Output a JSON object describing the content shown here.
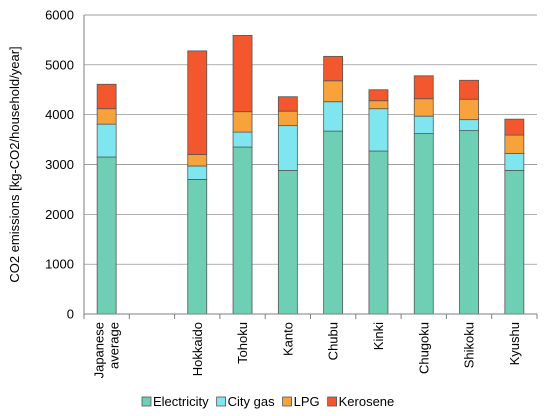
{
  "chart_data": {
    "type": "bar",
    "stacked": true,
    "categories": [
      "Japanese average",
      "",
      "Hokkaido",
      "Tohoku",
      "Kanto",
      "Chubu",
      "Kinki",
      "Chugoku",
      "Shikoku",
      "Kyushu"
    ],
    "category_lines": [
      [
        "Japanese",
        "average"
      ],
      [],
      [
        "Hokkaido"
      ],
      [
        "Tohoku"
      ],
      [
        "Kanto"
      ],
      [
        "Chubu"
      ],
      [
        "Kinki"
      ],
      [
        "Chugoku"
      ],
      [
        "Shikoku"
      ],
      [
        "Kyushu"
      ]
    ],
    "series": [
      {
        "name": "Electricity",
        "color": "#6ecfb4",
        "values": [
          3150,
          null,
          2700,
          3350,
          2880,
          3670,
          3270,
          3620,
          3680,
          2880
        ]
      },
      {
        "name": "City gas",
        "color": "#7fe6ef",
        "values": [
          660,
          null,
          270,
          300,
          900,
          590,
          850,
          350,
          220,
          340
        ]
      },
      {
        "name": "LPG",
        "color": "#f7a23a",
        "values": [
          310,
          null,
          230,
          410,
          290,
          420,
          160,
          350,
          410,
          370
        ]
      },
      {
        "name": "Kerosene",
        "color": "#f2572d",
        "values": [
          490,
          null,
          2080,
          1530,
          290,
          490,
          220,
          460,
          380,
          320
        ]
      }
    ],
    "ylabel": "CO2 emissions [kg-CO2/household/year]",
    "xlabel": "",
    "ylim": [
      0,
      6000
    ],
    "yticks": [
      0,
      1000,
      2000,
      3000,
      4000,
      5000,
      6000
    ],
    "grid": true,
    "legend": "bottom"
  }
}
